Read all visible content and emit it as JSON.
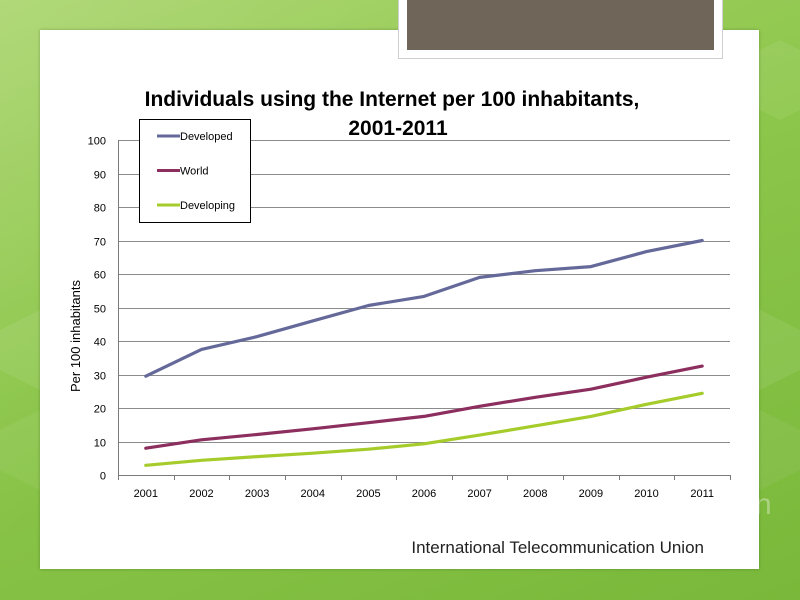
{
  "footer": {
    "source_text": "International Telecommunication Union"
  },
  "background": {
    "partial_text": "n"
  },
  "colors": {
    "background_green": "#8cc64a",
    "header_block": "#6f6558",
    "developed": "#65699a",
    "world": "#8c2f5e",
    "developing": "#a6cc2c",
    "gridline": "#8c8c8c"
  },
  "chart_data": {
    "type": "line",
    "title_line1": "Individuals using the Internet per 100 inhabitants,",
    "title_line2": "2001-2011",
    "xlabel": "",
    "ylabel": "Per 100 inhabitants",
    "ylim": [
      0,
      100
    ],
    "yticks": [
      0,
      10,
      20,
      30,
      40,
      50,
      60,
      70,
      80,
      90,
      100
    ],
    "x": [
      "2001",
      "2002",
      "2003",
      "2004",
      "2005",
      "2006",
      "2007",
      "2008",
      "2009",
      "2010",
      "2011"
    ],
    "grid": true,
    "legend_position": "top-left",
    "series": [
      {
        "name": "Developed",
        "color": "#65699a",
        "values": [
          29.5,
          37.5,
          41.3,
          46,
          50.6,
          53.3,
          59,
          61,
          62.2,
          66.7,
          70
        ]
      },
      {
        "name": "World",
        "color": "#8c2f5e",
        "values": [
          8,
          10.5,
          12.1,
          13.8,
          15.6,
          17.5,
          20.5,
          23.2,
          25.6,
          29.2,
          32.5
        ]
      },
      {
        "name": "Developing",
        "color": "#a6cc2c",
        "values": [
          2.9,
          4.4,
          5.5,
          6.5,
          7.7,
          9.3,
          11.9,
          14.7,
          17.5,
          21.1,
          24.4
        ]
      }
    ]
  }
}
